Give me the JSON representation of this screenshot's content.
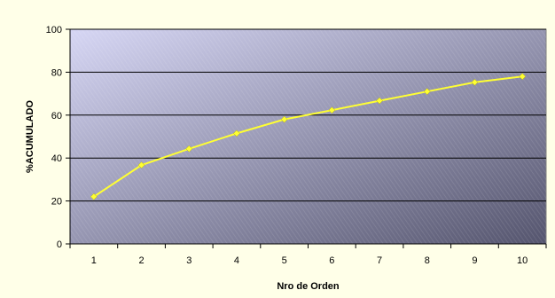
{
  "chart_data": {
    "type": "line",
    "title": "",
    "xlabel": "Nro de Orden",
    "ylabel": "%ACUMULADO",
    "categories": [
      "1",
      "2",
      "3",
      "4",
      "5",
      "6",
      "7",
      "8",
      "9",
      "10"
    ],
    "series": [
      {
        "values": [
          22,
          36.7,
          44.3,
          51.5,
          58,
          62.3,
          66.7,
          71,
          75.3,
          78
        ]
      }
    ],
    "ylim": [
      0,
      100
    ],
    "yticks": [
      "0",
      "20",
      "40",
      "60",
      "80",
      "100"
    ],
    "grid": true,
    "legend": "none",
    "colors": {
      "line": "#ffff33",
      "marker": "#ffff33",
      "gridline": "#000000",
      "plot_gradient_light": "#d6d6f4",
      "plot_gradient_dark": "#55556e",
      "background": "#ffffe8"
    }
  }
}
